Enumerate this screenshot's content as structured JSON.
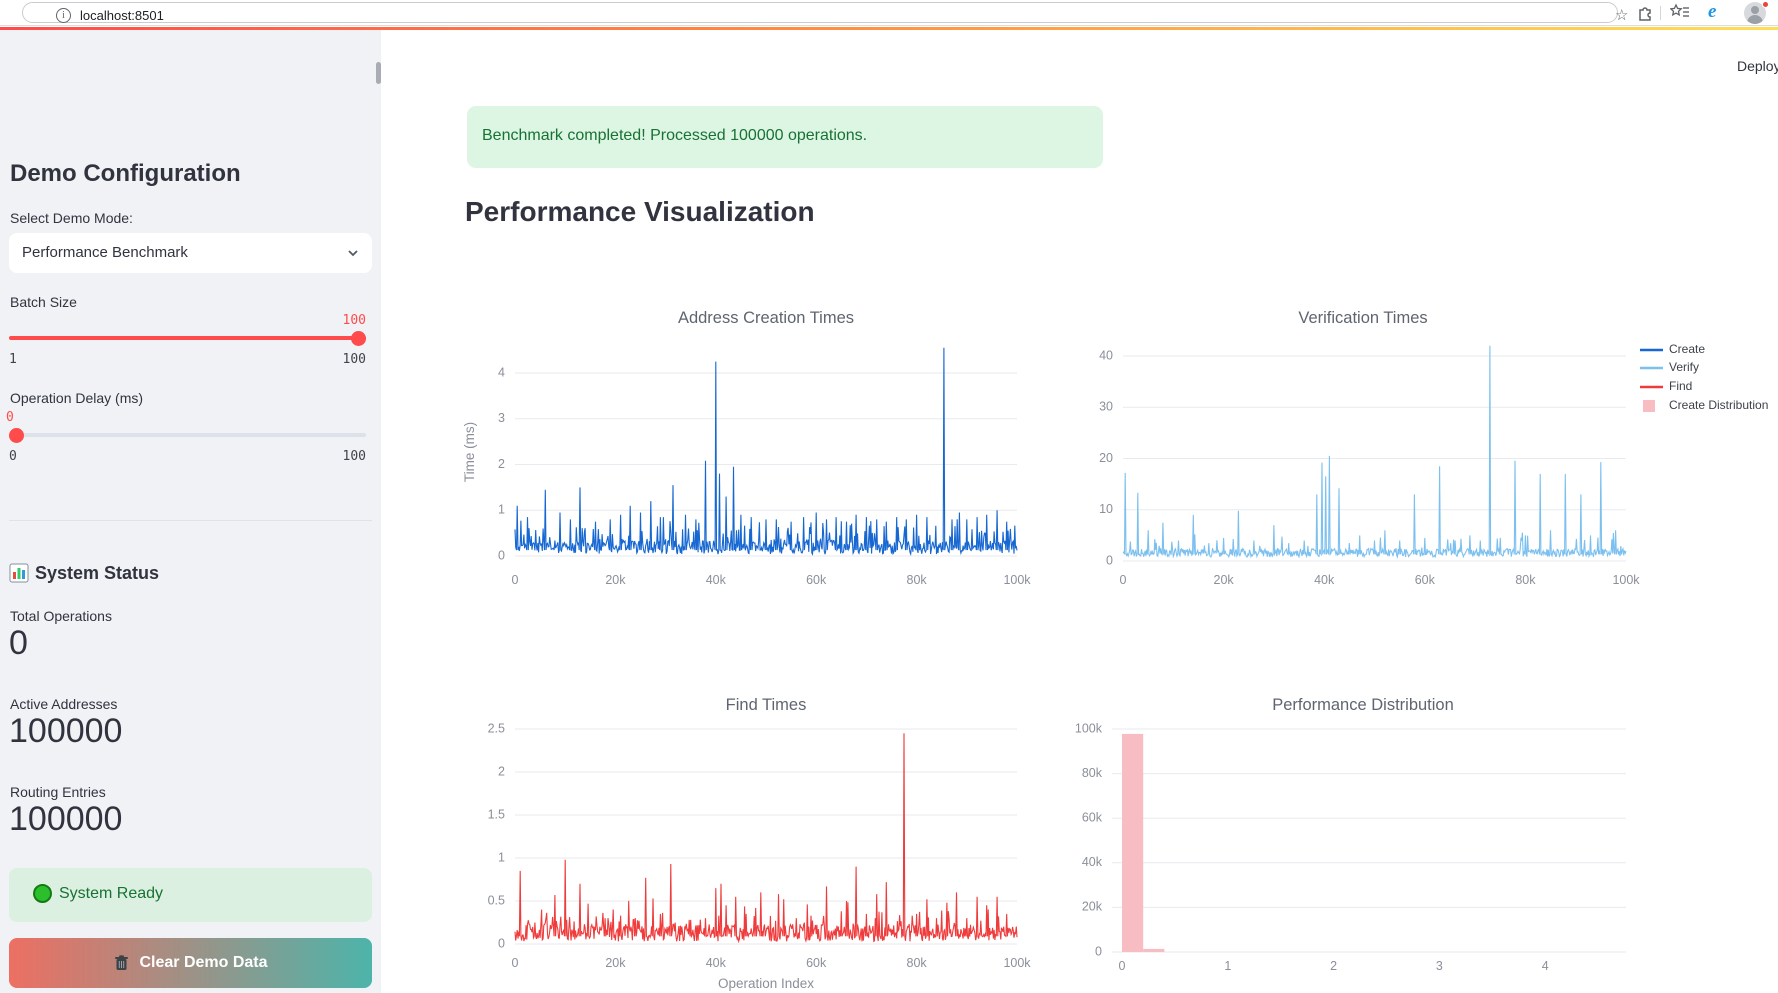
{
  "browser": {
    "url": "localhost:8501",
    "icons": [
      "info-icon",
      "bookmark-star-icon",
      "extensions-icon",
      "favorites-icon",
      "edge-legacy-icon",
      "profile-avatar"
    ]
  },
  "header": {
    "deploy_label": "Deploy"
  },
  "sidebar": {
    "title": "Demo Configuration",
    "select_label": "Select Demo Mode:",
    "select_value": "Performance Benchmark",
    "batch_slider": {
      "label": "Batch Size",
      "value": "100",
      "min": "1",
      "max": "100"
    },
    "delay_slider": {
      "label": "Operation Delay (ms)",
      "value": "0",
      "min": "0",
      "max": "100"
    },
    "status": {
      "title": "System Status",
      "metrics": [
        {
          "label": "Total Operations",
          "value": "0"
        },
        {
          "label": "Active Addresses",
          "value": "100000"
        },
        {
          "label": "Routing Entries",
          "value": "100000"
        }
      ],
      "ready_text": "System Ready"
    },
    "clear_button_label": "Clear Demo Data"
  },
  "main": {
    "success_message": "Benchmark completed! Processed 100000 operations.",
    "section_title": "Performance Visualization"
  },
  "colors": {
    "accent_red": "#ff4b4b",
    "create_blue": "#1667d1",
    "verify_lightblue": "#7cc0ef",
    "find_red": "#ef3b3b",
    "distribution_pink": "#f8bdc3",
    "grid": "#e8eaef",
    "tick_text": "#8a8f99",
    "title_text": "#5f6570",
    "success_text": "#177233"
  },
  "legend": [
    {
      "label": "Create",
      "color": "#1667d1",
      "type": "line"
    },
    {
      "label": "Verify",
      "color": "#7cc0ef",
      "type": "line"
    },
    {
      "label": "Find",
      "color": "#ef3b3b",
      "type": "line"
    },
    {
      "label": "Create Distribution",
      "color": "#f8bdc3",
      "type": "square"
    }
  ],
  "chart_data": [
    {
      "type": "line",
      "title": "Address Creation Times",
      "series_name": "Create",
      "color": "#1667d1",
      "ylabel": "Time (ms)",
      "xticks": [
        "0",
        "20k",
        "40k",
        "60k",
        "80k",
        "100k"
      ],
      "yticks": [
        "0",
        "1",
        "2",
        "3",
        "4"
      ],
      "ytick_values": [
        0,
        1,
        2,
        3,
        4
      ],
      "xlim_ops": [
        0,
        100000
      ],
      "ylim": [
        0,
        4.8
      ],
      "baseline": {
        "floor": 0.04,
        "band": 0.3,
        "p_mid": 0.22,
        "mid": 0.55,
        "p_hi": 0.045,
        "hi": 0.45,
        "seed": 7
      },
      "peaks_ops_ms": [
        [
          400,
          1.1
        ],
        [
          2500,
          0.85
        ],
        [
          6000,
          1.45
        ],
        [
          9000,
          0.95
        ],
        [
          11000,
          0.8
        ],
        [
          13000,
          1.5
        ],
        [
          16000,
          0.75
        ],
        [
          19000,
          0.8
        ],
        [
          21000,
          0.9
        ],
        [
          23000,
          1.1
        ],
        [
          25000,
          0.95
        ],
        [
          27000,
          1.2
        ],
        [
          29000,
          0.85
        ],
        [
          31500,
          1.55
        ],
        [
          34000,
          0.9
        ],
        [
          36000,
          0.8
        ],
        [
          38000,
          2.08
        ],
        [
          40000,
          4.25
        ],
        [
          40800,
          1.8
        ],
        [
          42000,
          1.3
        ],
        [
          43500,
          1.95
        ],
        [
          45000,
          0.9
        ],
        [
          47000,
          0.85
        ],
        [
          50000,
          0.8
        ],
        [
          52000,
          0.8
        ],
        [
          55000,
          0.75
        ],
        [
          57500,
          0.85
        ],
        [
          60000,
          0.95
        ],
        [
          62000,
          0.8
        ],
        [
          64000,
          0.85
        ],
        [
          66000,
          0.75
        ],
        [
          68000,
          0.9
        ],
        [
          70000,
          0.85
        ],
        [
          72000,
          0.8
        ],
        [
          74000,
          0.75
        ],
        [
          76000,
          0.85
        ],
        [
          78000,
          0.8
        ],
        [
          80000,
          0.9
        ],
        [
          82000,
          0.85
        ],
        [
          85500,
          4.55
        ],
        [
          87000,
          0.8
        ],
        [
          88500,
          0.95
        ],
        [
          90000,
          0.8
        ],
        [
          92000,
          0.85
        ],
        [
          94000,
          0.9
        ],
        [
          96000,
          1.0
        ],
        [
          98000,
          0.75
        ]
      ]
    },
    {
      "type": "line",
      "title": "Verification Times",
      "series_name": "Verify",
      "color": "#7cc0ef",
      "xticks": [
        "0",
        "20k",
        "40k",
        "60k",
        "80k",
        "100k"
      ],
      "yticks": [
        "0",
        "10",
        "20",
        "30",
        "40"
      ],
      "ytick_values": [
        0,
        10,
        20,
        30,
        40
      ],
      "xlim_ops": [
        0,
        100000
      ],
      "ylim": [
        0,
        43
      ],
      "baseline": {
        "floor": 0.8,
        "band": 1.6,
        "p_mid": 0.08,
        "mid": 3.5,
        "p_hi": 0.02,
        "hi": 4.5,
        "seed": 11
      },
      "peaks_ops_ms": [
        [
          500,
          17.2
        ],
        [
          3000,
          13.3
        ],
        [
          5000,
          6
        ],
        [
          8000,
          7.5
        ],
        [
          11000,
          4
        ],
        [
          14000,
          9
        ],
        [
          17000,
          3.5
        ],
        [
          20000,
          4.5
        ],
        [
          23000,
          9.8
        ],
        [
          26000,
          4
        ],
        [
          30000,
          7
        ],
        [
          33000,
          3.5
        ],
        [
          36000,
          4
        ],
        [
          38500,
          13
        ],
        [
          39500,
          19.2
        ],
        [
          40300,
          16.5
        ],
        [
          41000,
          20.5
        ],
        [
          43000,
          14.2
        ],
        [
          45000,
          3.5
        ],
        [
          47000,
          5
        ],
        [
          50000,
          4
        ],
        [
          52000,
          6
        ],
        [
          55000,
          4
        ],
        [
          58000,
          13
        ],
        [
          60000,
          4.5
        ],
        [
          63000,
          18.5
        ],
        [
          66000,
          4
        ],
        [
          69000,
          5
        ],
        [
          71000,
          4
        ],
        [
          73000,
          42
        ],
        [
          75000,
          4.5
        ],
        [
          78000,
          19.6
        ],
        [
          80000,
          5
        ],
        [
          83000,
          17
        ],
        [
          85000,
          6
        ],
        [
          88000,
          17
        ],
        [
          91000,
          13
        ],
        [
          93000,
          5
        ],
        [
          95000,
          19.3
        ],
        [
          98000,
          6
        ]
      ]
    },
    {
      "type": "line",
      "title": "Find Times",
      "series_name": "Find",
      "color": "#ef3b3b",
      "xlabel": "Operation Index",
      "xticks": [
        "0",
        "20k",
        "40k",
        "60k",
        "80k",
        "100k"
      ],
      "yticks": [
        "0",
        "0.5",
        "1",
        "1.5",
        "2",
        "2.5"
      ],
      "ytick_values": [
        0,
        0.5,
        1,
        1.5,
        2,
        2.5
      ],
      "xlim_ops": [
        0,
        100000
      ],
      "ylim": [
        0,
        2.6
      ],
      "baseline": {
        "floor": 0.03,
        "band": 0.2,
        "p_mid": 0.18,
        "mid": 0.22,
        "p_hi": 0.035,
        "hi": 0.3,
        "seed": 13
      },
      "peaks_ops_ms": [
        [
          1000,
          0.85
        ],
        [
          4000,
          0.25
        ],
        [
          8000,
          0.57
        ],
        [
          10000,
          0.98
        ],
        [
          13000,
          0.7
        ],
        [
          14500,
          0.47
        ],
        [
          18000,
          0.3
        ],
        [
          21000,
          0.33
        ],
        [
          24000,
          0.3
        ],
        [
          26000,
          0.77
        ],
        [
          27500,
          0.53
        ],
        [
          29000,
          0.35
        ],
        [
          31000,
          0.93
        ],
        [
          35000,
          0.28
        ],
        [
          38000,
          0.3
        ],
        [
          40000,
          0.65
        ],
        [
          41000,
          0.7
        ],
        [
          42000,
          0.45
        ],
        [
          44000,
          0.55
        ],
        [
          46000,
          0.35
        ],
        [
          48000,
          0.42
        ],
        [
          49000,
          0.6
        ],
        [
          52500,
          0.58
        ],
        [
          53500,
          0.52
        ],
        [
          56000,
          0.3
        ],
        [
          59000,
          0.33
        ],
        [
          62000,
          0.67
        ],
        [
          65000,
          0.38
        ],
        [
          66000,
          0.5
        ],
        [
          68000,
          0.9
        ],
        [
          70000,
          0.35
        ],
        [
          72000,
          0.58
        ],
        [
          74000,
          0.72
        ],
        [
          77500,
          2.45
        ],
        [
          80000,
          0.35
        ],
        [
          82000,
          0.52
        ],
        [
          84000,
          0.3
        ],
        [
          86000,
          0.48
        ],
        [
          88000,
          0.6
        ],
        [
          90000,
          0.3
        ],
        [
          92000,
          0.55
        ],
        [
          94000,
          0.45
        ],
        [
          96000,
          0.55
        ],
        [
          98000,
          0.35
        ]
      ]
    },
    {
      "type": "histogram",
      "title": "Performance Distribution",
      "series_name": "Create Distribution",
      "color": "#f8bdc3",
      "xticks": [
        "0",
        "1",
        "2",
        "3",
        "4"
      ],
      "xtick_values": [
        0,
        1,
        2,
        3,
        4
      ],
      "yticks": [
        "0",
        "20k",
        "40k",
        "60k",
        "80k",
        "100k"
      ],
      "ytick_values": [
        0,
        20000,
        40000,
        60000,
        80000,
        100000
      ],
      "xlim": [
        -0.1,
        4.85
      ],
      "ylim": [
        0,
        100000
      ],
      "bins": [
        {
          "range": [
            0,
            0.2
          ],
          "count": 97800
        },
        {
          "range": [
            0.2,
            0.4
          ],
          "count": 1400
        }
      ]
    }
  ]
}
